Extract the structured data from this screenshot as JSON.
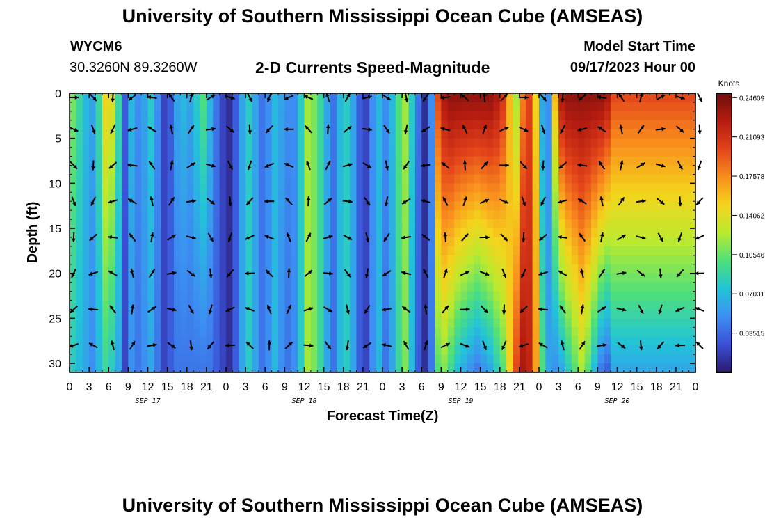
{
  "header": {
    "title": "University of Southern Mississippi Ocean Cube (AMSEAS)",
    "station": "WYCM6",
    "coords": "30.3260N  89.3260W",
    "subtitle": "2-D Currents Speed-Magnitude",
    "model_start_label": "Model Start Time",
    "model_start_value": "09/17/2023 Hour 00"
  },
  "footer": {
    "title_repeat": "University of Southern Mississippi Ocean Cube (AMSEAS)"
  },
  "chart_data": {
    "type": "heatmap",
    "title": "2-D Currents Speed-Magnitude",
    "xlabel": "Forecast Time(Z)",
    "ylabel": "Depth (ft)",
    "x_range_hours": [
      0,
      96
    ],
    "y_range_ft": [
      0,
      31
    ],
    "x_tick_labels": [
      "0",
      "3",
      "6",
      "9",
      "12",
      "15",
      "18",
      "21",
      "0",
      "3",
      "6",
      "9",
      "12",
      "15",
      "18",
      "21",
      "0",
      "3",
      "6",
      "9",
      "12",
      "15",
      "18",
      "21",
      "0",
      "3",
      "6",
      "9",
      "12",
      "15",
      "18",
      "21",
      "0"
    ],
    "y_tick_values": [
      0,
      5,
      10,
      15,
      20,
      25,
      30
    ],
    "y_tick_labels": [
      "0",
      "5",
      "10",
      "15",
      "20",
      "25",
      "30"
    ],
    "day_labels": [
      {
        "label": "SEP 17",
        "hour": 12
      },
      {
        "label": "SEP 18",
        "hour": 36
      },
      {
        "label": "SEP 19",
        "hour": 60
      },
      {
        "label": "SEP 20",
        "hour": 84
      }
    ],
    "colorbar": {
      "units": "Knots",
      "tick_labels": [
        "0.24609",
        "0.21093",
        "0.17578",
        "0.14062",
        "0.10546",
        "0.07031",
        "0.03515"
      ],
      "tick_values": [
        0.24609,
        0.21093,
        0.17578,
        0.14062,
        0.10546,
        0.07031,
        0.03515
      ],
      "range": [
        0,
        0.25
      ]
    },
    "arrow_depths_ft": [
      0,
      4,
      8,
      12,
      16,
      20,
      24,
      28
    ],
    "arrow_hours": [
      0,
      3,
      6,
      9,
      12,
      15,
      18,
      21,
      24,
      27,
      30,
      33,
      36,
      39,
      42,
      45,
      48,
      51,
      54,
      57,
      60,
      63,
      66,
      69,
      72,
      75,
      78,
      81,
      84,
      87,
      90,
      93,
      96
    ],
    "column_speed_knots": [
      {
        "hour": 0,
        "surface": 0.11,
        "bottom": 0.08
      },
      {
        "hour": 1,
        "surface": 0.09,
        "bottom": 0.07
      },
      {
        "hour": 2,
        "surface": 0.07,
        "bottom": 0.06
      },
      {
        "hour": 3,
        "surface": 0.06,
        "bottom": 0.05
      },
      {
        "hour": 4,
        "surface": 0.09,
        "bottom": 0.07
      },
      {
        "hour": 5,
        "surface": 0.15,
        "bottom": 0.09
      },
      {
        "hour": 6,
        "surface": 0.14,
        "bottom": 0.08
      },
      {
        "hour": 7,
        "surface": 0.09,
        "bottom": 0.06
      },
      {
        "hour": 8,
        "surface": 0.03,
        "bottom": 0.02
      },
      {
        "hour": 9,
        "surface": 0.07,
        "bottom": 0.05
      },
      {
        "hour": 10,
        "surface": 0.05,
        "bottom": 0.04
      },
      {
        "hour": 11,
        "surface": 0.06,
        "bottom": 0.05
      },
      {
        "hour": 12,
        "surface": 0.08,
        "bottom": 0.06
      },
      {
        "hour": 13,
        "surface": 0.05,
        "bottom": 0.04
      },
      {
        "hour": 14,
        "surface": 0.02,
        "bottom": 0.02
      },
      {
        "hour": 15,
        "surface": 0.03,
        "bottom": 0.03
      },
      {
        "hour": 16,
        "surface": 0.06,
        "bottom": 0.04
      },
      {
        "hour": 17,
        "surface": 0.07,
        "bottom": 0.04
      },
      {
        "hour": 18,
        "surface": 0.06,
        "bottom": 0.04
      },
      {
        "hour": 19,
        "surface": 0.08,
        "bottom": 0.04
      },
      {
        "hour": 20,
        "surface": 0.1,
        "bottom": 0.04
      },
      {
        "hour": 21,
        "surface": 0.07,
        "bottom": 0.04
      },
      {
        "hour": 22,
        "surface": 0.04,
        "bottom": 0.03
      },
      {
        "hour": 23,
        "surface": 0.02,
        "bottom": 0.02
      },
      {
        "hour": 24,
        "surface": 0.01,
        "bottom": 0.01
      },
      {
        "hour": 25,
        "surface": 0.03,
        "bottom": 0.03
      },
      {
        "hour": 26,
        "surface": 0.06,
        "bottom": 0.06
      },
      {
        "hour": 27,
        "surface": 0.08,
        "bottom": 0.08
      },
      {
        "hour": 28,
        "surface": 0.06,
        "bottom": 0.06
      },
      {
        "hour": 29,
        "surface": 0.04,
        "bottom": 0.04
      },
      {
        "hour": 30,
        "surface": 0.05,
        "bottom": 0.05
      },
      {
        "hour": 31,
        "surface": 0.07,
        "bottom": 0.07
      },
      {
        "hour": 32,
        "surface": 0.06,
        "bottom": 0.05
      },
      {
        "hour": 33,
        "surface": 0.05,
        "bottom": 0.04
      },
      {
        "hour": 34,
        "surface": 0.05,
        "bottom": 0.05
      },
      {
        "hour": 35,
        "surface": 0.08,
        "bottom": 0.08
      },
      {
        "hour": 36,
        "surface": 0.12,
        "bottom": 0.12
      },
      {
        "hour": 37,
        "surface": 0.11,
        "bottom": 0.11
      },
      {
        "hour": 38,
        "surface": 0.09,
        "bottom": 0.09
      },
      {
        "hour": 39,
        "surface": 0.06,
        "bottom": 0.06
      },
      {
        "hour": 40,
        "surface": 0.04,
        "bottom": 0.04
      },
      {
        "hour": 41,
        "surface": 0.07,
        "bottom": 0.07
      },
      {
        "hour": 42,
        "surface": 0.08,
        "bottom": 0.08
      },
      {
        "hour": 43,
        "surface": 0.06,
        "bottom": 0.06
      },
      {
        "hour": 44,
        "surface": 0.03,
        "bottom": 0.03
      },
      {
        "hour": 45,
        "surface": 0.02,
        "bottom": 0.02
      },
      {
        "hour": 46,
        "surface": 0.05,
        "bottom": 0.05
      },
      {
        "hour": 47,
        "surface": 0.07,
        "bottom": 0.07
      },
      {
        "hour": 48,
        "surface": 0.05,
        "bottom": 0.04
      },
      {
        "hour": 49,
        "surface": 0.07,
        "bottom": 0.06
      },
      {
        "hour": 50,
        "surface": 0.1,
        "bottom": 0.09
      },
      {
        "hour": 51,
        "surface": 0.12,
        "bottom": 0.11
      },
      {
        "hour": 52,
        "surface": 0.08,
        "bottom": 0.07
      },
      {
        "hour": 53,
        "surface": 0.04,
        "bottom": 0.03
      },
      {
        "hour": 54,
        "surface": 0.01,
        "bottom": 0.01
      },
      {
        "hour": 55,
        "surface": 0.05,
        "bottom": 0.04
      },
      {
        "hour": 56,
        "surface": 0.2,
        "bottom": 0.1
      },
      {
        "hour": 57,
        "surface": 0.23,
        "bottom": 0.11
      },
      {
        "hour": 58,
        "surface": 0.24,
        "bottom": 0.09
      },
      {
        "hour": 59,
        "surface": 0.24,
        "bottom": 0.07
      },
      {
        "hour": 60,
        "surface": 0.24,
        "bottom": 0.06
      },
      {
        "hour": 61,
        "surface": 0.24,
        "bottom": 0.05
      },
      {
        "hour": 62,
        "surface": 0.24,
        "bottom": 0.04
      },
      {
        "hour": 63,
        "surface": 0.24,
        "bottom": 0.05
      },
      {
        "hour": 64,
        "surface": 0.24,
        "bottom": 0.06
      },
      {
        "hour": 65,
        "surface": 0.23,
        "bottom": 0.08
      },
      {
        "hour": 66,
        "surface": 0.21,
        "bottom": 0.1
      },
      {
        "hour": 67,
        "surface": 0.16,
        "bottom": 0.15
      },
      {
        "hour": 68,
        "surface": 0.12,
        "bottom": 0.2
      },
      {
        "hour": 69,
        "surface": 0.18,
        "bottom": 0.23
      },
      {
        "hour": 70,
        "surface": 0.2,
        "bottom": 0.22
      },
      {
        "hour": 71,
        "surface": 0.15,
        "bottom": 0.17
      },
      {
        "hour": 72,
        "surface": 0.06,
        "bottom": 0.1
      },
      {
        "hour": 73,
        "surface": 0.05,
        "bottom": 0.06
      },
      {
        "hour": 74,
        "surface": 0.16,
        "bottom": 0.05
      },
      {
        "hour": 75,
        "surface": 0.23,
        "bottom": 0.06
      },
      {
        "hour": 76,
        "surface": 0.24,
        "bottom": 0.08
      },
      {
        "hour": 77,
        "surface": 0.24,
        "bottom": 0.1
      },
      {
        "hour": 78,
        "surface": 0.24,
        "bottom": 0.12
      },
      {
        "hour": 79,
        "surface": 0.24,
        "bottom": 0.1
      },
      {
        "hour": 80,
        "surface": 0.24,
        "bottom": 0.07
      },
      {
        "hour": 81,
        "surface": 0.24,
        "bottom": 0.04
      },
      {
        "hour": 82,
        "surface": 0.23,
        "bottom": 0.03
      },
      {
        "hour": 83,
        "surface": 0.2,
        "bottom": 0.06
      }
    ]
  }
}
